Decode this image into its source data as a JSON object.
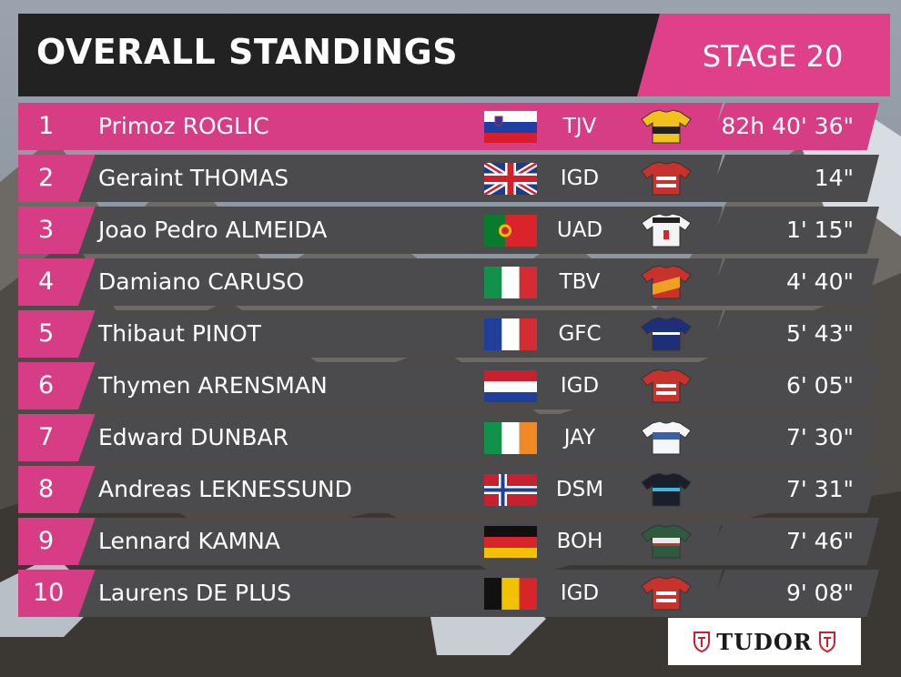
{
  "header": {
    "title": "OVERALL STANDINGS",
    "stage": "STAGE 20"
  },
  "colors": {
    "accent_pink": "#d63d84",
    "row_bg": "#4b4b4d",
    "header_bg": "#222222"
  },
  "standings": [
    {
      "rank": "1",
      "name": "Primoz ROGLIC",
      "flag": "slovenia-flag",
      "team": "TJV",
      "jersey": "jumbo-visma-jersey",
      "time": "82h 40' 36\""
    },
    {
      "rank": "2",
      "name": "Geraint THOMAS",
      "flag": "uk-flag",
      "team": "IGD",
      "jersey": "ineos-jersey",
      "time": "14\""
    },
    {
      "rank": "3",
      "name": "Joao Pedro ALMEIDA",
      "flag": "portugal-flag",
      "team": "UAD",
      "jersey": "uae-jersey",
      "time": "1' 15\""
    },
    {
      "rank": "4",
      "name": "Damiano CARUSO",
      "flag": "italy-flag",
      "team": "TBV",
      "jersey": "bahrain-jersey",
      "time": "4' 40\""
    },
    {
      "rank": "5",
      "name": "Thibaut PINOT",
      "flag": "france-flag",
      "team": "GFC",
      "jersey": "groupama-jersey",
      "time": "5' 43\""
    },
    {
      "rank": "6",
      "name": "Thymen ARENSMAN",
      "flag": "netherlands-flag",
      "team": "IGD",
      "jersey": "ineos-jersey",
      "time": "6' 05\""
    },
    {
      "rank": "7",
      "name": "Edward DUNBAR",
      "flag": "ireland-flag",
      "team": "JAY",
      "jersey": "jayco-jersey",
      "time": "7' 30\""
    },
    {
      "rank": "8",
      "name": "Andreas LEKNESSUND",
      "flag": "norway-flag",
      "team": "DSM",
      "jersey": "dsm-jersey",
      "time": "7' 31\""
    },
    {
      "rank": "9",
      "name": "Lennard KAMNA",
      "flag": "germany-flag",
      "team": "BOH",
      "jersey": "bora-jersey",
      "time": "7' 46\""
    },
    {
      "rank": "10",
      "name": "Laurens DE PLUS",
      "flag": "belgium-flag",
      "team": "IGD",
      "jersey": "ineos-jersey",
      "time": "9' 08\""
    }
  ],
  "sponsor": {
    "logo_text": "TUDOR",
    "icon": "shield-icon"
  }
}
